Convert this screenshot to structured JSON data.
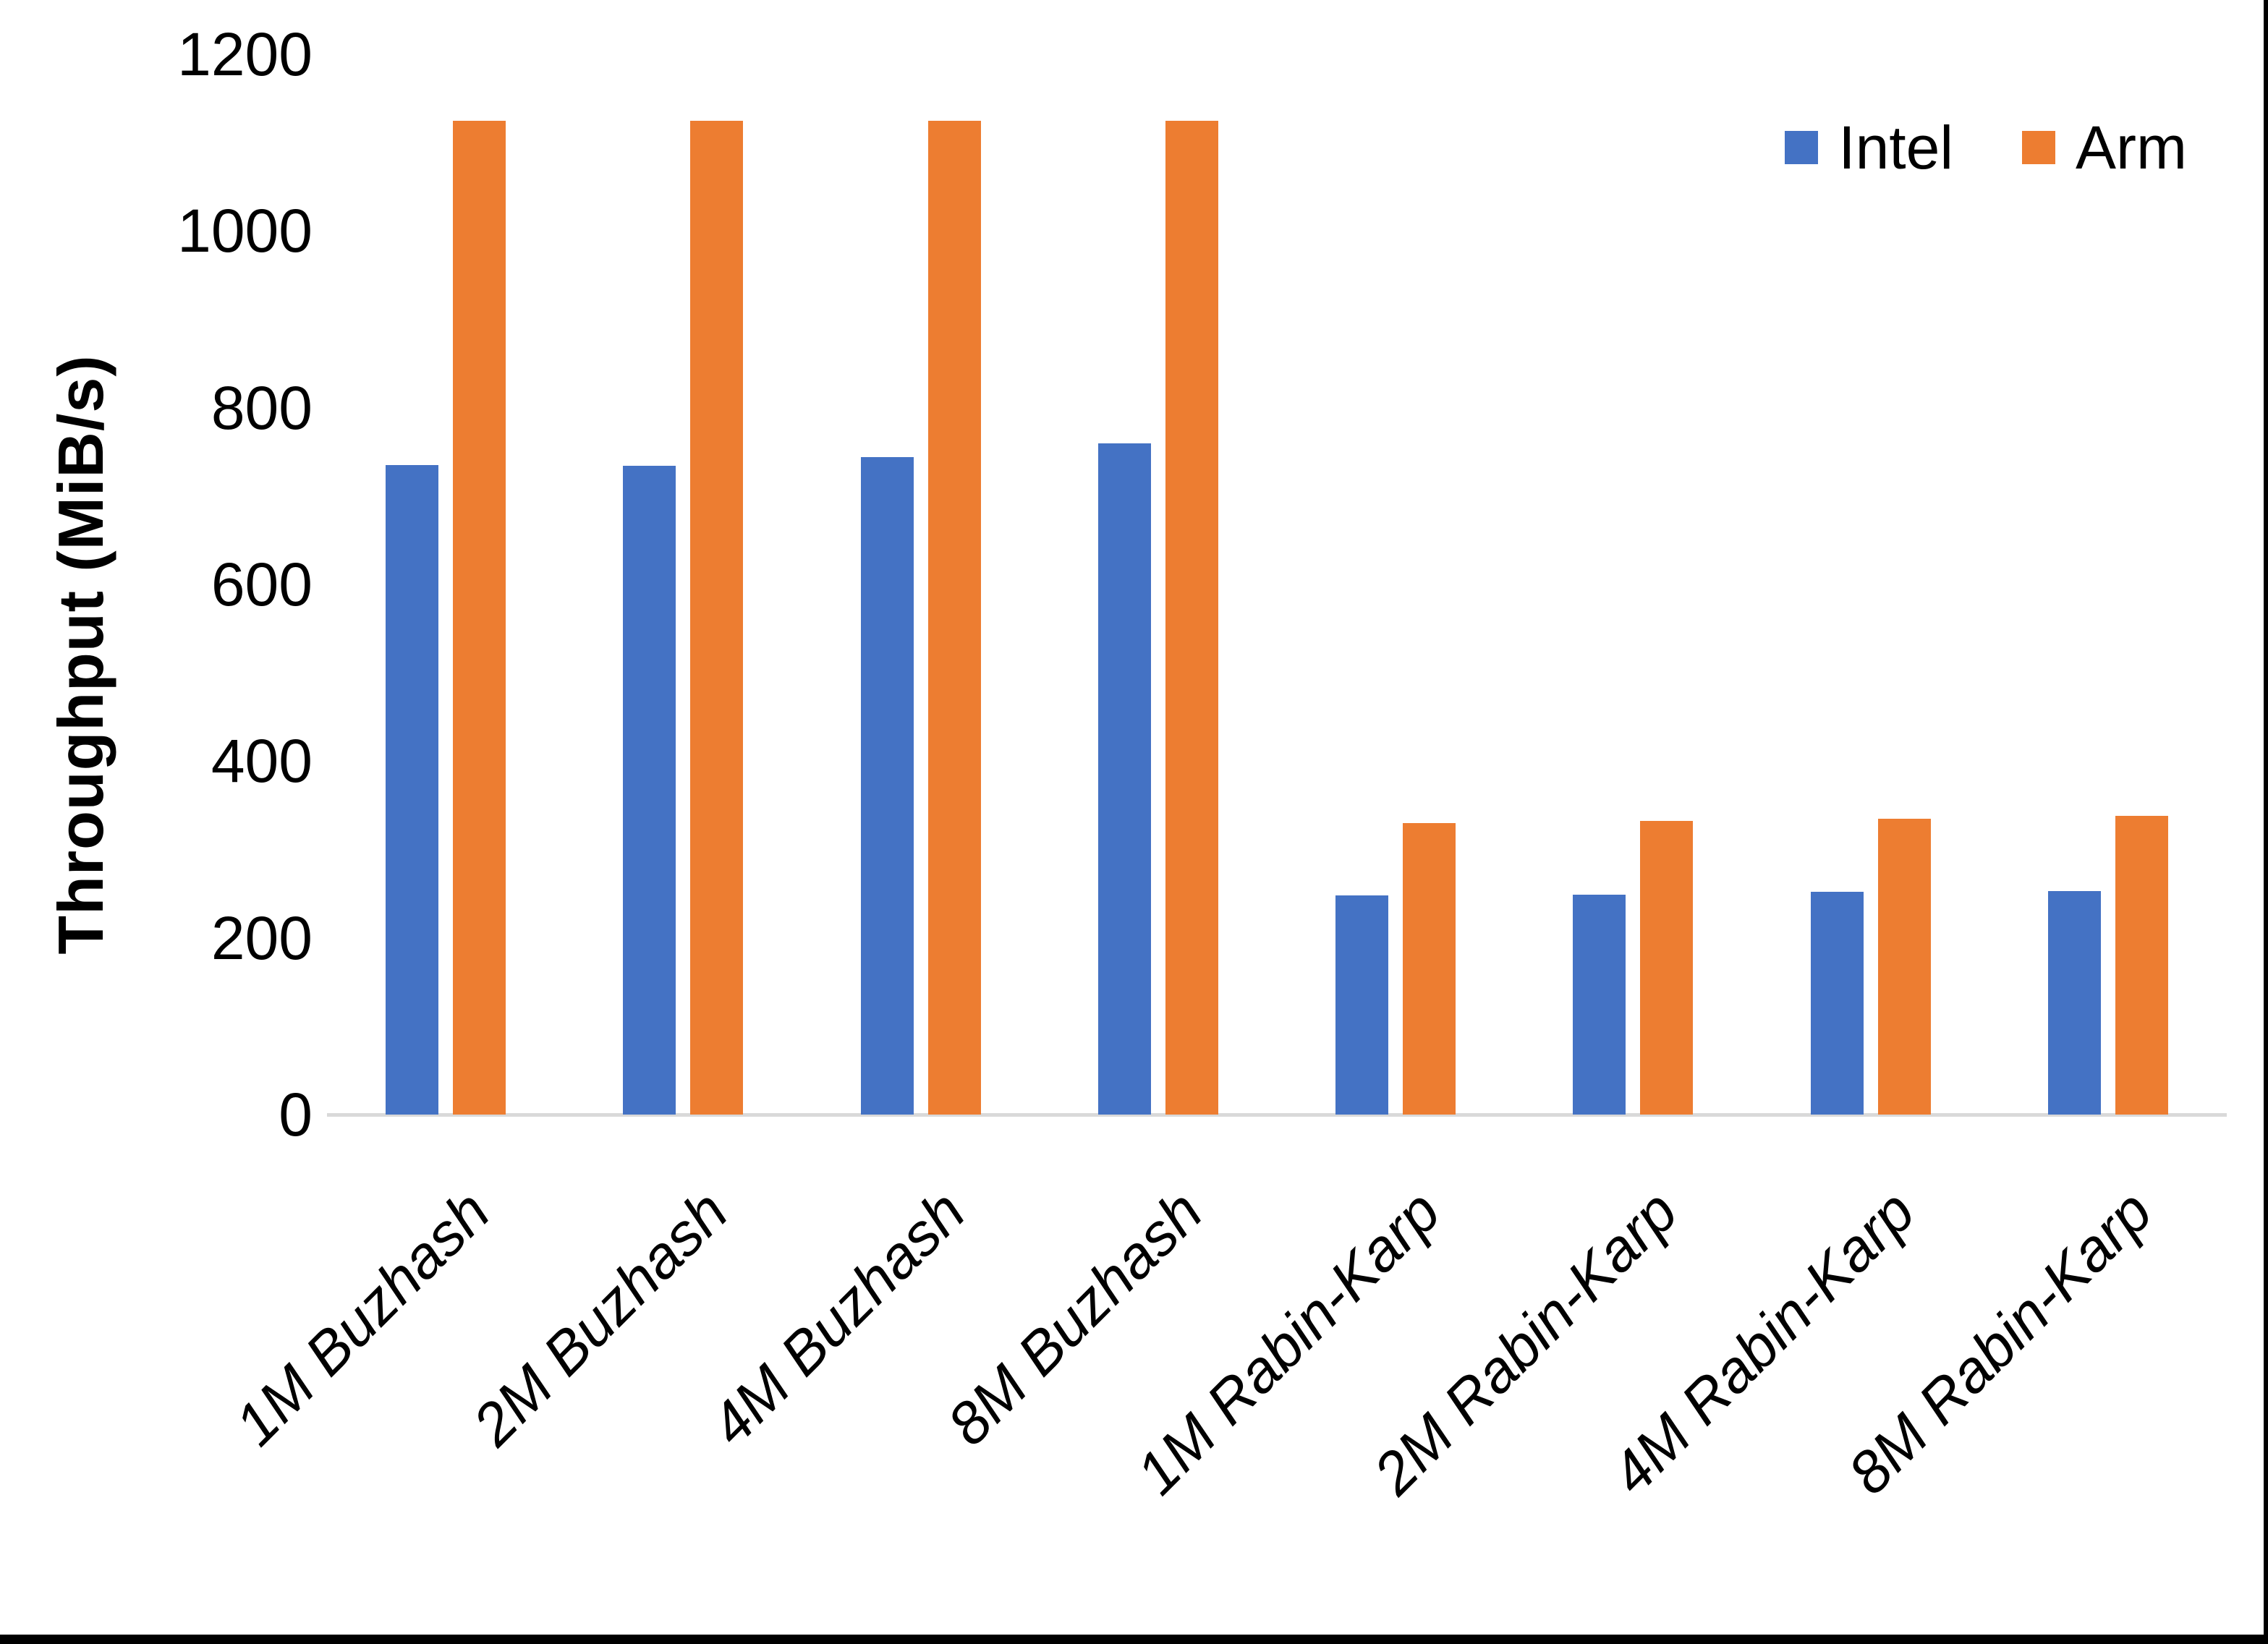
{
  "chart_data": {
    "type": "bar",
    "title": "",
    "xlabel": "",
    "ylabel": "Throughput (MiB/s)",
    "ylim": [
      0,
      1200
    ],
    "yticks": [
      0,
      200,
      400,
      600,
      800,
      1000,
      1200
    ],
    "grid": false,
    "legend_position": "top-right",
    "categories": [
      "1M Buzhash",
      "2M Buzhash",
      "4M Buzhash",
      "8M Buzhash",
      "1M Rabin-Karp",
      "2M Rabin-Karp",
      "4M Rabin-Karp",
      "8M Rabin-Karp"
    ],
    "series": [
      {
        "name": "Intel",
        "color": "#4472C4",
        "values": [
          735,
          734,
          744,
          760,
          248,
          249,
          252,
          253
        ]
      },
      {
        "name": "Arm",
        "color": "#ED7D31",
        "values": [
          1125,
          1125,
          1125,
          1125,
          330,
          332,
          335,
          338
        ]
      }
    ]
  }
}
